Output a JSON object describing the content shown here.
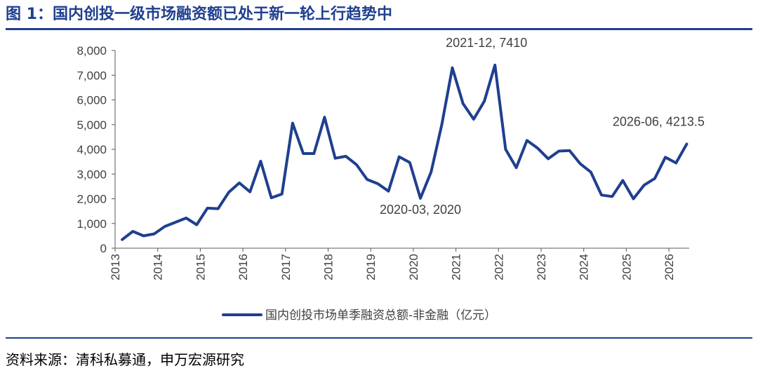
{
  "header": {
    "title": "图 1：国内创投一级市场融资额已处于新一轮上行趋势中"
  },
  "footer": {
    "source": "资料来源：清科私募通，申万宏源研究"
  },
  "colors": {
    "series": "#1f3f8f",
    "axis": "#595959",
    "text": "#404040",
    "rule": "#1f3f8f"
  },
  "chart_data": {
    "type": "line",
    "title": "",
    "xlabel": "",
    "ylabel": "",
    "ylim": [
      0,
      8000
    ],
    "y_ticks": [
      0,
      1000,
      2000,
      3000,
      4000,
      5000,
      6000,
      7000,
      8000
    ],
    "y_tick_labels": [
      "0",
      "1,000",
      "2,000",
      "3,000",
      "4,000",
      "5,000",
      "6,000",
      "7,000",
      "8,000"
    ],
    "x_tick_labels": [
      "2013",
      "2014",
      "2015",
      "2016",
      "2017",
      "2018",
      "2019",
      "2020",
      "2021",
      "2022",
      "2023",
      "2024",
      "2025",
      "2026"
    ],
    "grid": false,
    "legend_position": "bottom",
    "series": [
      {
        "name": "国内创投市场单季融资总额-非金融（亿元）",
        "x": [
          "2013-03",
          "2013-06",
          "2013-09",
          "2013-12",
          "2014-03",
          "2014-06",
          "2014-09",
          "2014-12",
          "2015-03",
          "2015-06",
          "2015-09",
          "2015-12",
          "2016-03",
          "2016-06",
          "2016-09",
          "2016-12",
          "2017-03",
          "2017-06",
          "2017-09",
          "2017-12",
          "2018-03",
          "2018-06",
          "2018-09",
          "2018-12",
          "2019-03",
          "2019-06",
          "2019-09",
          "2019-12",
          "2020-03",
          "2020-06",
          "2020-09",
          "2020-12",
          "2021-03",
          "2021-06",
          "2021-09",
          "2021-12",
          "2022-03",
          "2022-06",
          "2022-09",
          "2022-12",
          "2023-03",
          "2023-06",
          "2023-09",
          "2023-12",
          "2024-03",
          "2024-06",
          "2024-09",
          "2024-12",
          "2025-03",
          "2025-06",
          "2025-09",
          "2025-12",
          "2026-03",
          "2026-06"
        ],
        "values": [
          350,
          680,
          500,
          580,
          880,
          1050,
          1220,
          950,
          1620,
          1600,
          2260,
          2640,
          2280,
          3520,
          2040,
          2190,
          5060,
          3830,
          3830,
          5300,
          3640,
          3720,
          3380,
          2780,
          2610,
          2310,
          3700,
          3470,
          2020,
          3080,
          4990,
          7300,
          5850,
          5220,
          5950,
          7410,
          4000,
          3260,
          4360,
          4050,
          3620,
          3930,
          3950,
          3420,
          3080,
          2150,
          2090,
          2740,
          2000,
          2550,
          2820,
          3680,
          3450,
          4213.5
        ]
      }
    ],
    "annotations": [
      {
        "label": "2020-03, 2020",
        "x": "2020-03",
        "y": 2020
      },
      {
        "label": "2021-12, 7410",
        "x": "2021-12",
        "y": 7410
      },
      {
        "label": "2026-06, 4213.5",
        "x": "2026-06",
        "y": 4213.5
      }
    ]
  }
}
